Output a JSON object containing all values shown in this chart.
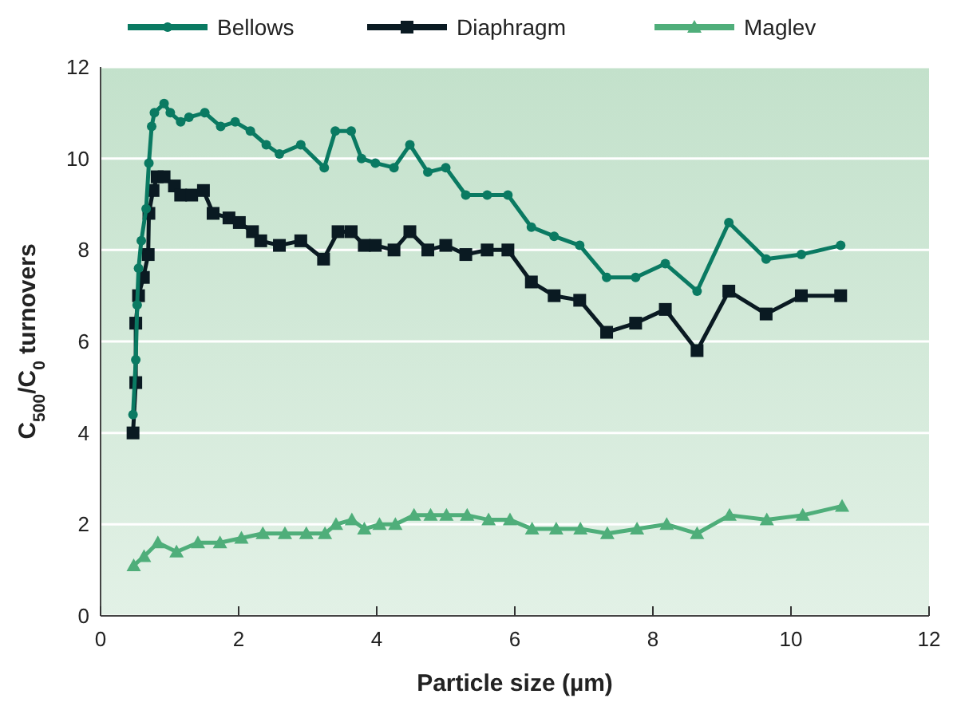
{
  "chart_data": {
    "type": "line",
    "xlabel": "Particle size (µm)",
    "ylabel": "C$_{500}$/C$_{0}$ turnovers",
    "xlim": [
      0,
      12
    ],
    "ylim": [
      0,
      12
    ],
    "xticks": [
      0,
      2,
      4,
      6,
      8,
      10,
      12
    ],
    "yticks": [
      0,
      2,
      4,
      6,
      8,
      10,
      12
    ],
    "grid": "y",
    "legend": "top",
    "line_style": "solid",
    "series": [
      {
        "name": "Bellows",
        "color": "#0a7a62",
        "marker": "circle",
        "x": [
          0.47,
          0.51,
          0.53,
          0.55,
          0.59,
          0.66,
          0.7,
          0.74,
          0.78,
          0.92,
          1.01,
          1.16,
          1.28,
          1.51,
          1.74,
          1.95,
          2.17,
          2.4,
          2.59,
          2.9,
          3.24,
          3.4,
          3.63,
          3.78,
          3.98,
          4.25,
          4.48,
          4.74,
          5.0,
          5.29,
          5.6,
          5.9,
          6.24,
          6.57,
          6.94,
          7.33,
          7.75,
          8.18,
          8.64,
          9.1,
          9.64,
          10.15,
          10.72
        ],
        "values": [
          4.4,
          5.6,
          6.8,
          7.6,
          8.2,
          8.9,
          9.9,
          10.7,
          11.0,
          11.2,
          11.0,
          10.8,
          10.9,
          11.0,
          10.7,
          10.8,
          10.6,
          10.3,
          10.1,
          10.3,
          9.8,
          10.6,
          10.6,
          10.0,
          9.9,
          9.8,
          10.3,
          9.7,
          9.8,
          9.2,
          9.2,
          9.2,
          8.5,
          8.3,
          8.1,
          7.4,
          7.4,
          7.7,
          7.1,
          8.6,
          7.8,
          7.9,
          8.1
        ]
      },
      {
        "name": "Diaphragm",
        "color": "#0a1a22",
        "marker": "square",
        "x": [
          0.47,
          0.51,
          0.51,
          0.55,
          0.62,
          0.69,
          0.7,
          0.76,
          0.82,
          0.92,
          1.07,
          1.16,
          1.32,
          1.49,
          1.63,
          1.86,
          2.01,
          2.2,
          2.32,
          2.59,
          2.9,
          3.23,
          3.44,
          3.63,
          3.82,
          3.98,
          4.25,
          4.48,
          4.74,
          5.0,
          5.29,
          5.6,
          5.9,
          6.24,
          6.57,
          6.94,
          7.33,
          7.75,
          8.18,
          8.64,
          9.1,
          9.64,
          10.15,
          10.72
        ],
        "values": [
          4.0,
          5.1,
          6.4,
          7.0,
          7.4,
          7.9,
          8.8,
          9.3,
          9.6,
          9.6,
          9.4,
          9.2,
          9.2,
          9.3,
          8.8,
          8.7,
          8.6,
          8.4,
          8.2,
          8.1,
          8.2,
          7.8,
          8.4,
          8.4,
          8.1,
          8.1,
          8.0,
          8.4,
          8.0,
          8.1,
          7.9,
          8.0,
          8.0,
          7.3,
          7.0,
          6.9,
          6.2,
          6.4,
          6.7,
          5.8,
          7.1,
          6.6,
          7.0,
          7.0
        ]
      },
      {
        "name": "Maglev",
        "color": "#4fae7a",
        "marker": "triangle",
        "x": [
          0.48,
          0.63,
          0.83,
          1.1,
          1.41,
          1.73,
          2.04,
          2.35,
          2.67,
          2.98,
          3.25,
          3.41,
          3.64,
          3.82,
          4.04,
          4.27,
          4.54,
          4.78,
          5.01,
          5.31,
          5.62,
          5.93,
          6.25,
          6.6,
          6.95,
          7.34,
          7.77,
          8.2,
          8.64,
          9.11,
          9.65,
          10.17,
          10.74
        ],
        "values": [
          1.1,
          1.3,
          1.6,
          1.4,
          1.6,
          1.6,
          1.7,
          1.8,
          1.8,
          1.8,
          1.8,
          2.0,
          2.1,
          1.9,
          2.0,
          2.0,
          2.2,
          2.2,
          2.2,
          2.2,
          2.1,
          2.1,
          1.9,
          1.9,
          1.9,
          1.8,
          1.9,
          2.0,
          1.8,
          2.2,
          2.1,
          2.2,
          2.4
        ]
      }
    ]
  }
}
